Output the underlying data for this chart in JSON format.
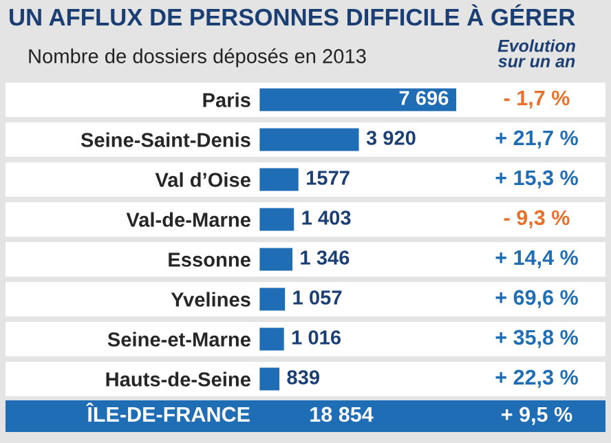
{
  "chart_data": {
    "type": "bar",
    "orientation": "horizontal",
    "title": "UN AFFLUX DE PERSONNES DIFFICILE À GÉRER",
    "subtitle": "Nombre de dossiers déposés en 2013",
    "categories": [
      "Paris",
      "Seine-Saint-Denis",
      "Val d’Oise",
      "Val-de-Marne",
      "Essonne",
      "Yvelines",
      "Seine-et-Marne",
      "Hauts-de-Seine"
    ],
    "values": [
      7696,
      3920,
      1577,
      1403,
      1346,
      1057,
      1016,
      839
    ],
    "value_labels": [
      "7 696",
      "3 920",
      "1577",
      "1 403",
      "1 346",
      "1 057",
      "1 016",
      "839"
    ],
    "color": "#1f6db4",
    "annotations": [
      "Evolution\nsur un an",
      "- 1,7 %",
      "+ 21,7 %",
      "+ 15,3 %",
      "- 9,3 %",
      "+ 14,4 %",
      "+ 69,6 %",
      "+ 35,8 %",
      "+ 22,3 %",
      "ÎLE-DE-FRANCE",
      "18 854",
      "+ 9,5 %"
    ]
  }
}
